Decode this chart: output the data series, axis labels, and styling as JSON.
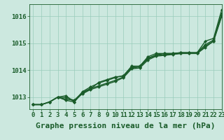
{
  "background_color": "#cce8df",
  "plot_bg_color": "#cce8df",
  "grid_color": "#99ccbb",
  "line_color": "#1a5c2a",
  "title": "Graphe pression niveau de la mer (hPa)",
  "xlim": [
    -0.5,
    23
  ],
  "ylim": [
    1012.55,
    1016.45
  ],
  "yticks": [
    1013,
    1014,
    1015,
    1016
  ],
  "xticks": [
    0,
    1,
    2,
    3,
    4,
    5,
    6,
    7,
    8,
    9,
    10,
    11,
    12,
    13,
    14,
    15,
    16,
    17,
    18,
    19,
    20,
    21,
    22,
    23
  ],
  "series": [
    [
      1012.72,
      1012.72,
      1012.82,
      1013.0,
      1013.05,
      1012.82,
      1013.15,
      1013.3,
      1013.55,
      1013.65,
      1013.75,
      1013.78,
      1014.15,
      1014.15,
      1014.5,
      1014.62,
      1014.62,
      1014.62,
      1014.65,
      1014.65,
      1014.65,
      1015.08,
      1015.18,
      1016.25
    ],
    [
      1012.72,
      1012.72,
      1012.82,
      1013.0,
      1012.88,
      1012.82,
      1013.2,
      1013.38,
      1013.52,
      1013.62,
      1013.72,
      1013.8,
      1014.12,
      1014.15,
      1014.45,
      1014.57,
      1014.62,
      1014.62,
      1014.65,
      1014.65,
      1014.65,
      1014.95,
      1015.12,
      1016.12
    ],
    [
      1012.72,
      1012.72,
      1012.82,
      1013.0,
      1012.92,
      1012.88,
      1013.18,
      1013.32,
      1013.42,
      1013.52,
      1013.62,
      1013.75,
      1014.08,
      1014.12,
      1014.42,
      1014.55,
      1014.58,
      1014.6,
      1014.62,
      1014.62,
      1014.62,
      1014.9,
      1015.08,
      1016.05
    ],
    [
      1012.72,
      1012.72,
      1012.82,
      1013.0,
      1012.98,
      1012.88,
      1013.12,
      1013.28,
      1013.38,
      1013.48,
      1013.58,
      1013.72,
      1014.05,
      1014.08,
      1014.38,
      1014.52,
      1014.55,
      1014.58,
      1014.62,
      1014.62,
      1014.62,
      1014.85,
      1015.08,
      1016.0
    ]
  ],
  "title_fontsize": 8,
  "tick_fontsize": 6.5,
  "linewidth": 1.0,
  "markersize": 2.2
}
